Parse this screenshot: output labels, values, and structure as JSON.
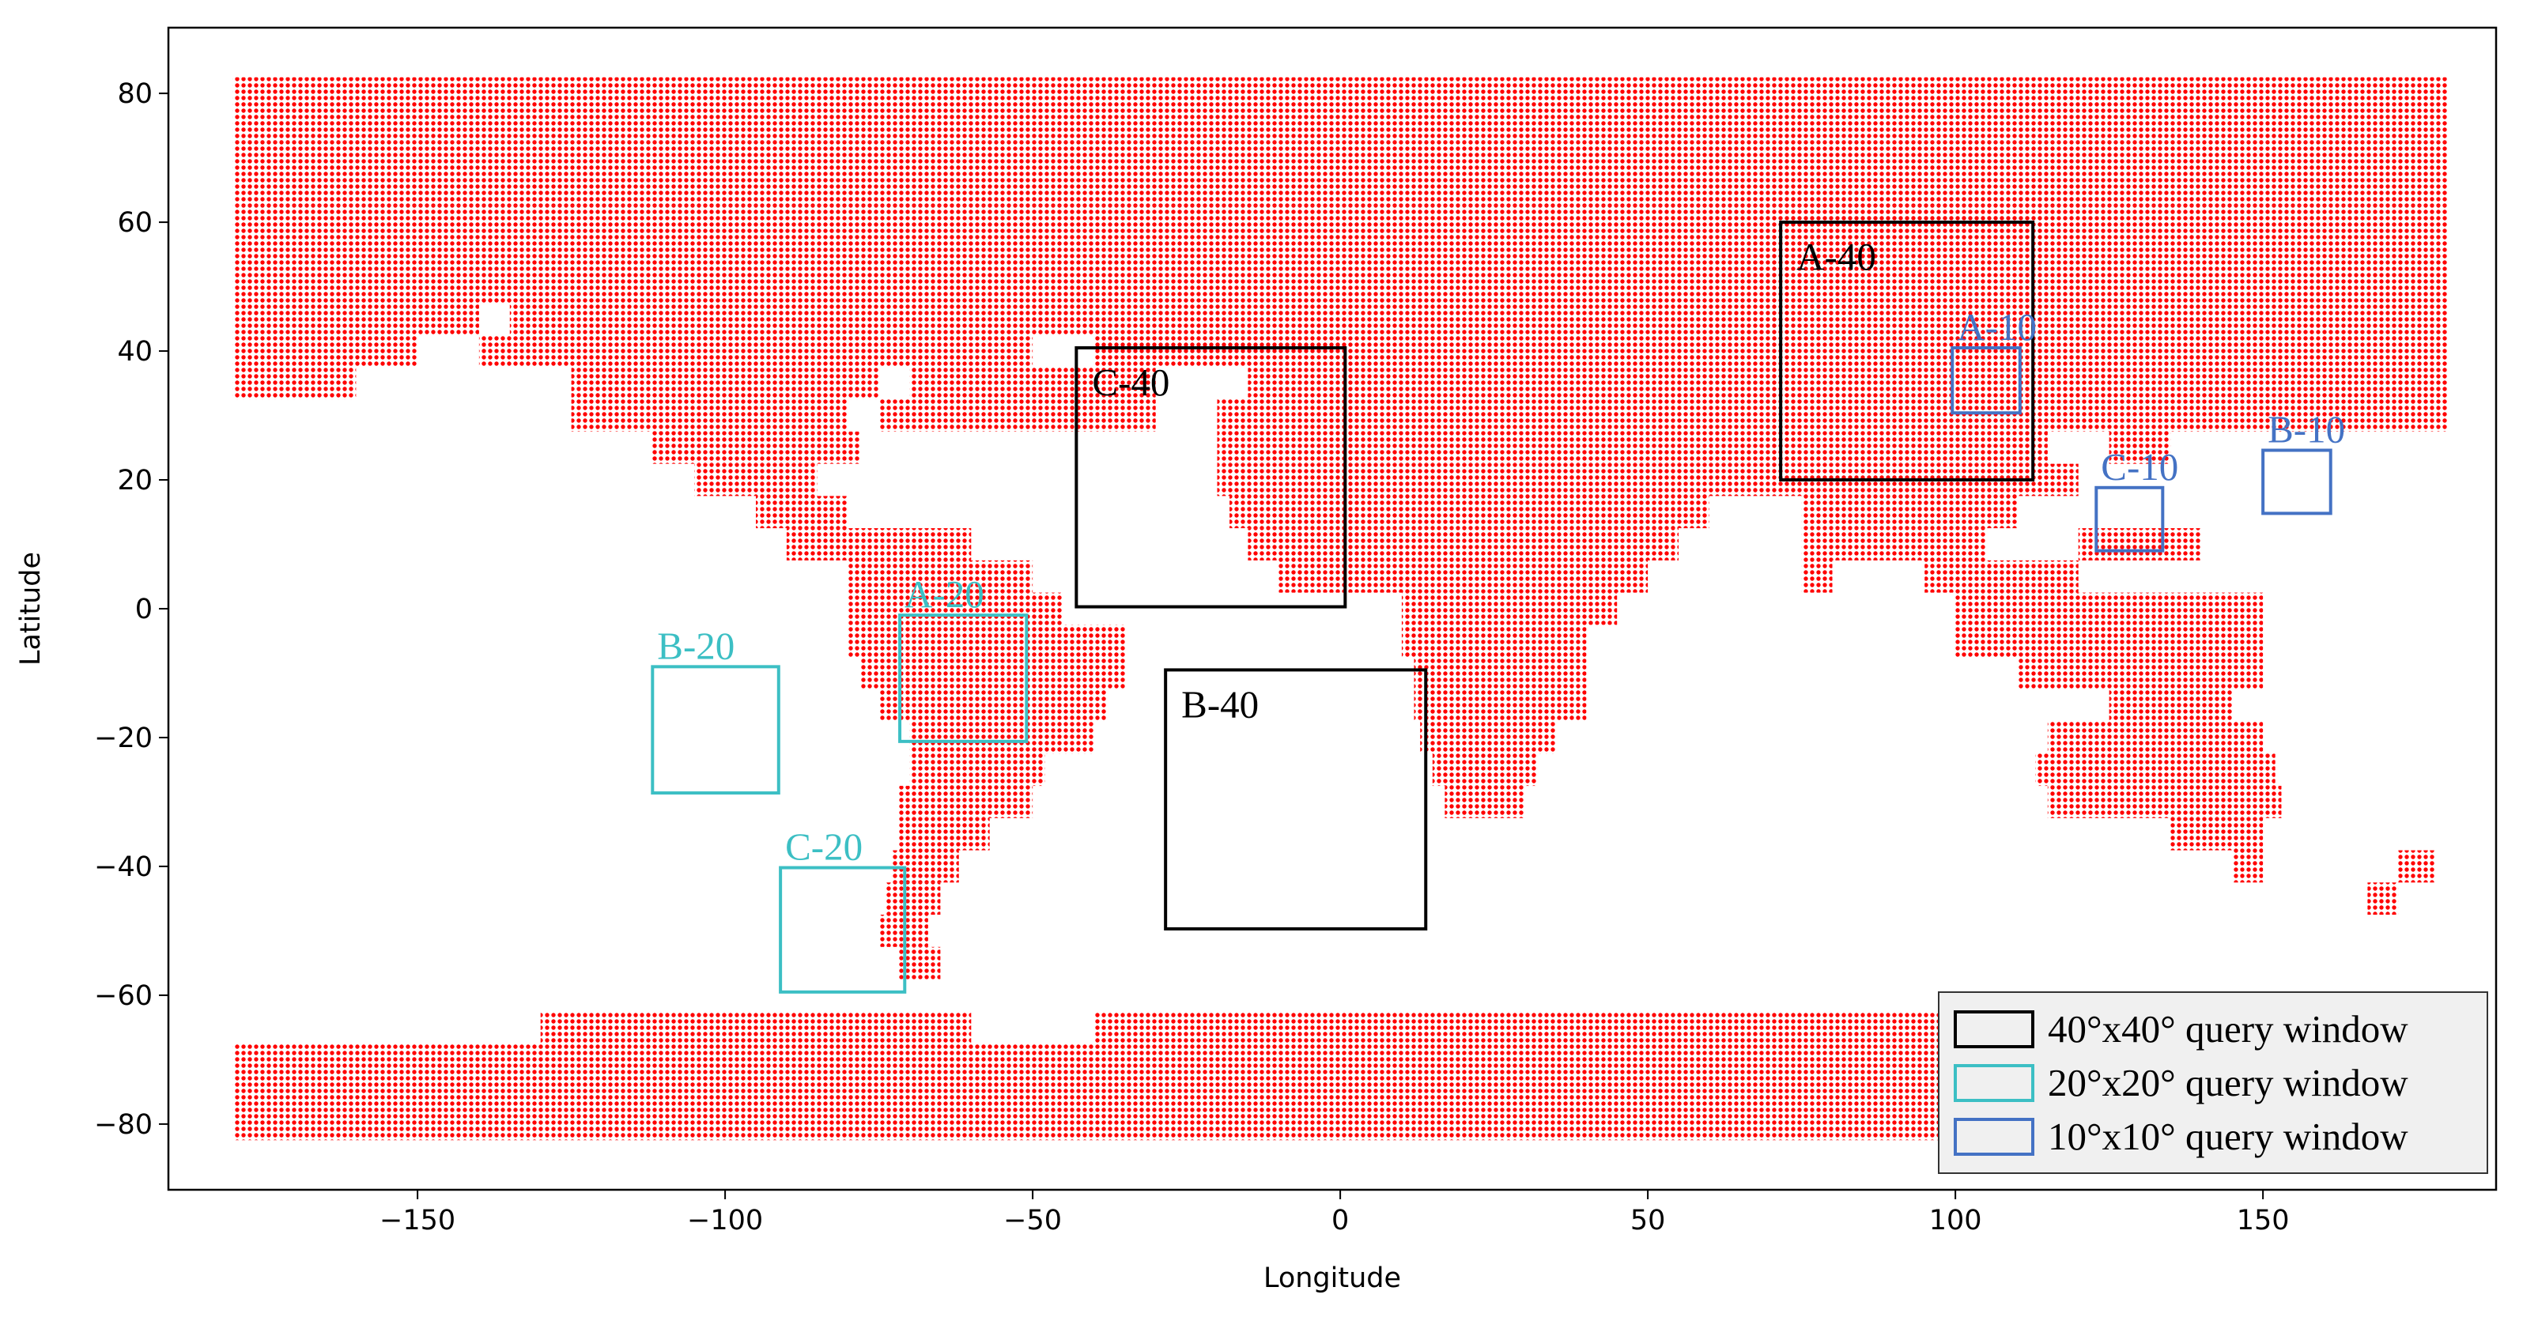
{
  "chart_data": {
    "type": "scatter",
    "xlabel": "Longitude",
    "ylabel": "Latitude",
    "xlim": [
      -190.5,
      187.9
    ],
    "ylim": [
      -90.2,
      90.2
    ],
    "xticks": [
      {
        "value": -150,
        "label": "−150"
      },
      {
        "value": -100,
        "label": "−100"
      },
      {
        "value": -50,
        "label": "−50"
      },
      0,
      50,
      100,
      150
    ],
    "yticks": [
      80,
      60,
      40,
      20,
      0,
      {
        "value": -20,
        "label": "−20"
      },
      {
        "value": -40,
        "label": "−40"
      },
      {
        "value": -60,
        "label": "−60"
      },
      {
        "value": -80,
        "label": "−80"
      }
    ],
    "coverage": {
      "color": "#ff0000",
      "rows": [
        {
          "lat": 80,
          "lon": [
            [
              -180,
              180
            ]
          ]
        },
        {
          "lat": 75,
          "lon": [
            [
              -180,
              180
            ]
          ]
        },
        {
          "lat": 70,
          "lon": [
            [
              -180,
              180
            ]
          ]
        },
        {
          "lat": 65,
          "lon": [
            [
              -180,
              180
            ]
          ]
        },
        {
          "lat": 60,
          "lon": [
            [
              -180,
              180
            ]
          ]
        },
        {
          "lat": 55,
          "lon": [
            [
              -180,
              180
            ]
          ]
        },
        {
          "lat": 50,
          "lon": [
            [
              -180,
              180
            ]
          ]
        },
        {
          "lat": 45,
          "lon": [
            [
              -180,
              -140
            ],
            [
              -135,
              180
            ]
          ]
        },
        {
          "lat": 40,
          "lon": [
            [
              -180,
              -150
            ],
            [
              -140,
              -50
            ],
            [
              -40,
              180
            ]
          ]
        },
        {
          "lat": 35,
          "lon": [
            [
              -180,
              -160
            ],
            [
              -125,
              -75
            ],
            [
              -70,
              -30
            ],
            [
              -15,
              180
            ]
          ]
        },
        {
          "lat": 30,
          "lon": [
            [
              -125,
              -80
            ],
            [
              -75,
              -30
            ],
            [
              -20,
              180
            ]
          ]
        },
        {
          "lat": 25,
          "lon": [
            [
              -112,
              -78
            ],
            [
              -20,
              115
            ],
            [
              125,
              135
            ]
          ]
        },
        {
          "lat": 20,
          "lon": [
            [
              -105,
              -85
            ],
            [
              -20,
              120
            ]
          ]
        },
        {
          "lat": 15,
          "lon": [
            [
              -95,
              -80
            ],
            [
              -18,
              60
            ],
            [
              75,
              110
            ]
          ]
        },
        {
          "lat": 10,
          "lon": [
            [
              -90,
              -60
            ],
            [
              -15,
              55
            ],
            [
              75,
              105
            ],
            [
              120,
              140
            ]
          ]
        },
        {
          "lat": 5,
          "lon": [
            [
              -80,
              -50
            ],
            [
              -10,
              50
            ],
            [
              75,
              80
            ],
            [
              95,
              120
            ]
          ]
        },
        {
          "lat": 0,
          "lon": [
            [
              -80,
              -45
            ],
            [
              10,
              45
            ],
            [
              100,
              150
            ]
          ]
        },
        {
          "lat": -5,
          "lon": [
            [
              -80,
              -35
            ],
            [
              10,
              40
            ],
            [
              100,
              150
            ]
          ]
        },
        {
          "lat": -10,
          "lon": [
            [
              -78,
              -35
            ],
            [
              12,
              40
            ],
            [
              110,
              150
            ]
          ]
        },
        {
          "lat": -15,
          "lon": [
            [
              -75,
              -38
            ],
            [
              12,
              40
            ],
            [
              125,
              145
            ]
          ]
        },
        {
          "lat": -20,
          "lon": [
            [
              -70,
              -40
            ],
            [
              13,
              35
            ],
            [
              115,
              150
            ]
          ]
        },
        {
          "lat": -25,
          "lon": [
            [
              -70,
              -48
            ],
            [
              15,
              32
            ],
            [
              113,
              152
            ]
          ]
        },
        {
          "lat": -30,
          "lon": [
            [
              -72,
              -50
            ],
            [
              17,
              30
            ],
            [
              115,
              153
            ]
          ]
        },
        {
          "lat": -35,
          "lon": [
            [
              -72,
              -57
            ],
            [
              135,
              150
            ]
          ]
        },
        {
          "lat": -40,
          "lon": [
            [
              -73,
              -62
            ],
            [
              145,
              150
            ],
            [
              172,
              178
            ]
          ]
        },
        {
          "lat": -45,
          "lon": [
            [
              -74,
              -65
            ],
            [
              167,
              172
            ]
          ]
        },
        {
          "lat": -50,
          "lon": [
            [
              -75,
              -67
            ]
          ]
        },
        {
          "lat": -55,
          "lon": [
            [
              -72,
              -65
            ]
          ]
        },
        {
          "lat": -65,
          "lon": [
            [
              -130,
              -60
            ],
            [
              -40,
              180
            ]
          ]
        },
        {
          "lat": -70,
          "lon": [
            [
              -180,
              180
            ]
          ]
        },
        {
          "lat": -75,
          "lon": [
            [
              -180,
              180
            ]
          ]
        },
        {
          "lat": -80,
          "lon": [
            [
              -180,
              180
            ]
          ]
        }
      ]
    },
    "window_types": [
      {
        "name": "40°x40° query window",
        "color": "#000000"
      },
      {
        "name": "20°x20° query window",
        "color": "#3cbfc4"
      },
      {
        "name": "10°x10° query window",
        "color": "#4472c4"
      }
    ],
    "windows": [
      {
        "label": "A-40",
        "type": 0,
        "lon": [
          71.6,
          112.6
        ],
        "lat": [
          20,
          60
        ]
      },
      {
        "label": "B-40",
        "type": 0,
        "lon": [
          -28.4,
          13.9
        ],
        "lat": [
          -49.7,
          -9.5
        ]
      },
      {
        "label": "C-40",
        "type": 0,
        "lon": [
          -42.9,
          0.8
        ],
        "lat": [
          0.3,
          40.5
        ]
      },
      {
        "label": "A-20",
        "type": 1,
        "lon": [
          -71.6,
          -51
        ],
        "lat": [
          -20.6,
          -1
        ]
      },
      {
        "label": "B-20",
        "type": 1,
        "lon": [
          -111.8,
          -91.3
        ],
        "lat": [
          -28.6,
          -9
        ]
      },
      {
        "label": "C-20",
        "type": 1,
        "lon": [
          -91,
          -70.8
        ],
        "lat": [
          -59.5,
          -40.2
        ]
      },
      {
        "label": "A-10",
        "type": 2,
        "lon": [
          99.5,
          110.5
        ],
        "lat": [
          30.4,
          40.5
        ]
      },
      {
        "label": "B-10",
        "type": 2,
        "lon": [
          150,
          161
        ],
        "lat": [
          14.8,
          24.6
        ]
      },
      {
        "label": "C-10",
        "type": 2,
        "lon": [
          122.9,
          133.7
        ],
        "lat": [
          9,
          18.8
        ]
      }
    ],
    "legend": "lower right"
  }
}
